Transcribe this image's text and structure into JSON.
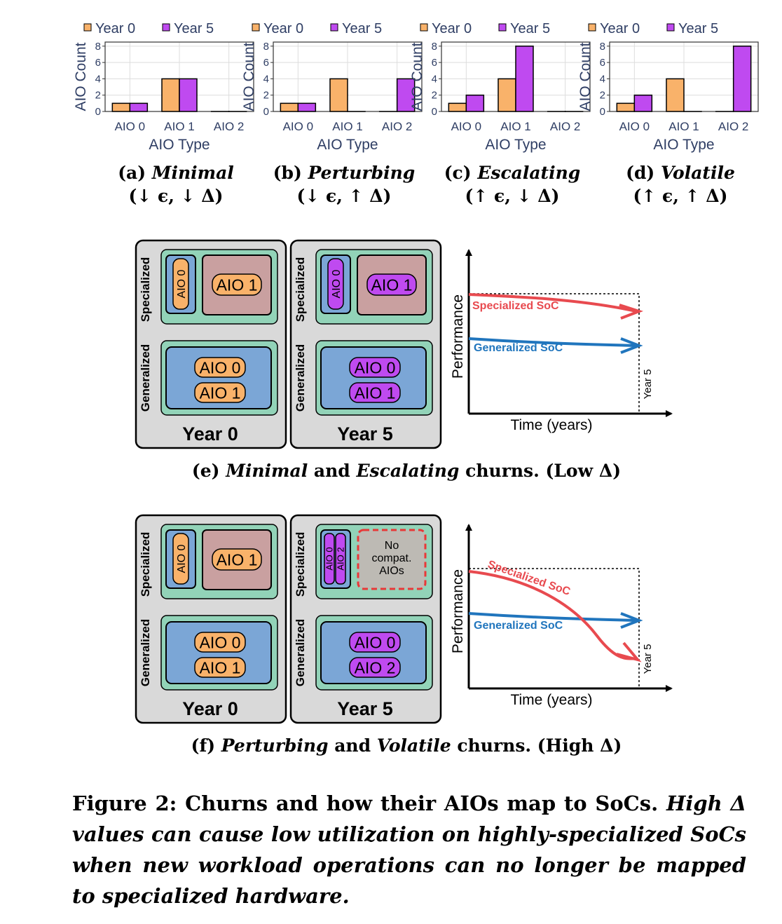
{
  "colors": {
    "year0": "#F9B26A",
    "year5": "#BF4AF0",
    "outer_panel": "#D9D9D9",
    "green": "#92D3B8",
    "blue": "#7BA6D6",
    "rosy": "#C9A0A0",
    "specialized_line": "#E84A4F",
    "generalized_line": "#2075BD",
    "axis_text": "#2F3E64"
  },
  "chart_data": [
    {
      "type": "bar",
      "panel": "a",
      "legend": [
        "Year 0",
        "Year 5"
      ],
      "categories": [
        "AIO 0",
        "AIO 1",
        "AIO 2"
      ],
      "series": [
        {
          "name": "Year 0",
          "values": [
            1,
            4,
            0
          ]
        },
        {
          "name": "Year 5",
          "values": [
            1,
            4,
            0
          ]
        }
      ],
      "xlabel": "AIO Type",
      "ylabel": "AIO Count",
      "yticks": [
        0,
        2,
        4,
        6,
        8
      ],
      "ylim": [
        0,
        8.5
      ],
      "grid": true,
      "label_prefix": "(a)",
      "label_name": "Minimal",
      "label_greek": "(↓ ϵ, ↓ Δ)"
    },
    {
      "type": "bar",
      "panel": "b",
      "legend": [
        "Year 0",
        "Year 5"
      ],
      "categories": [
        "AIO 0",
        "AIO 1",
        "AIO 2"
      ],
      "series": [
        {
          "name": "Year 0",
          "values": [
            1,
            4,
            0
          ]
        },
        {
          "name": "Year 5",
          "values": [
            1,
            0,
            4
          ]
        }
      ],
      "xlabel": "AIO Type",
      "ylabel": "AIO Count",
      "yticks": [
        0,
        2,
        4,
        6,
        8
      ],
      "ylim": [
        0,
        8.5
      ],
      "grid": true,
      "label_prefix": "(b)",
      "label_name": "Perturbing",
      "label_greek": "(↓ ϵ, ↑ Δ)"
    },
    {
      "type": "bar",
      "panel": "c",
      "legend": [
        "Year 0",
        "Year 5"
      ],
      "categories": [
        "AIO 0",
        "AIO 1",
        "AIO 2"
      ],
      "series": [
        {
          "name": "Year 0",
          "values": [
            1,
            4,
            0
          ]
        },
        {
          "name": "Year 5",
          "values": [
            2,
            8,
            0
          ]
        }
      ],
      "xlabel": "AIO Type",
      "ylabel": "AIO Count",
      "yticks": [
        0,
        2,
        4,
        6,
        8
      ],
      "ylim": [
        0,
        8.5
      ],
      "grid": true,
      "label_prefix": "(c)",
      "label_name": "Escalating",
      "label_greek": "(↑ ϵ, ↓ Δ)"
    },
    {
      "type": "bar",
      "panel": "d",
      "legend": [
        "Year 0",
        "Year 5"
      ],
      "categories": [
        "AIO 0",
        "AIO 1",
        "AIO 2"
      ],
      "series": [
        {
          "name": "Year 0",
          "values": [
            1,
            4,
            0
          ]
        },
        {
          "name": "Year 5",
          "values": [
            2,
            0,
            8
          ]
        }
      ],
      "xlabel": "AIO Type",
      "ylabel": "AIO Count",
      "yticks": [
        0,
        2,
        4,
        6,
        8
      ],
      "ylim": [
        0,
        8.5
      ],
      "grid": true,
      "label_prefix": "(d)",
      "label_name": "Volatile",
      "label_greek": "(↑ ϵ, ↑ Δ)"
    }
  ],
  "diagram_e": {
    "year0": {
      "title": "Year 0",
      "specialized_label": "Specialized",
      "generalized_label": "Generalized",
      "spec_small": "AIO 0",
      "spec_big": "AIO 1",
      "gen_items": [
        "AIO 0",
        "AIO 1"
      ]
    },
    "year5": {
      "title": "Year 5",
      "specialized_label": "Specialized",
      "generalized_label": "Generalized",
      "spec_small": "AIO 0",
      "spec_big": "AIO 1",
      "gen_items": [
        "AIO 0",
        "AIO 1"
      ]
    },
    "plot": {
      "ylabel": "Performance",
      "xlabel": "Time (years)",
      "year_marker": "Year 5",
      "specialized_label": "Specialized SoC",
      "generalized_label": "Generalized SoC"
    },
    "caption_prefix": "(e)",
    "caption_name1": "Minimal",
    "caption_and": "and",
    "caption_name2": "Escalating",
    "caption_suffix": "churns. (Low Δ)"
  },
  "diagram_f": {
    "year0": {
      "title": "Year 0",
      "specialized_label": "Specialized",
      "generalized_label": "Generalized",
      "spec_small": "AIO 0",
      "spec_big": "AIO 1",
      "gen_items": [
        "AIO 0",
        "AIO 1"
      ]
    },
    "year5": {
      "title": "Year 5",
      "specialized_label": "Specialized",
      "generalized_label": "Generalized",
      "spec_small_items": [
        "AIO 0",
        "AIO 2"
      ],
      "no_compat_lines": [
        "No",
        "compat.",
        "AIOs"
      ],
      "gen_items": [
        "AIO 0",
        "AIO 2"
      ]
    },
    "plot": {
      "ylabel": "Performance",
      "xlabel": "Time (years)",
      "year_marker": "Year 5",
      "specialized_label": "Specialized SoC",
      "generalized_label": "Generalized SoC"
    },
    "caption_prefix": "(f)",
    "caption_name1": "Perturbing",
    "caption_and": "and",
    "caption_name2": "Volatile",
    "caption_suffix": "churns. (High Δ)"
  },
  "caption": {
    "bold": "Figure 2: Churns and how their AIOs map to SoCs.",
    "italic": "High Δ values can cause low utilization on highly-specialized SoCs when new workload operations can no longer be mapped to specialized hardware."
  }
}
